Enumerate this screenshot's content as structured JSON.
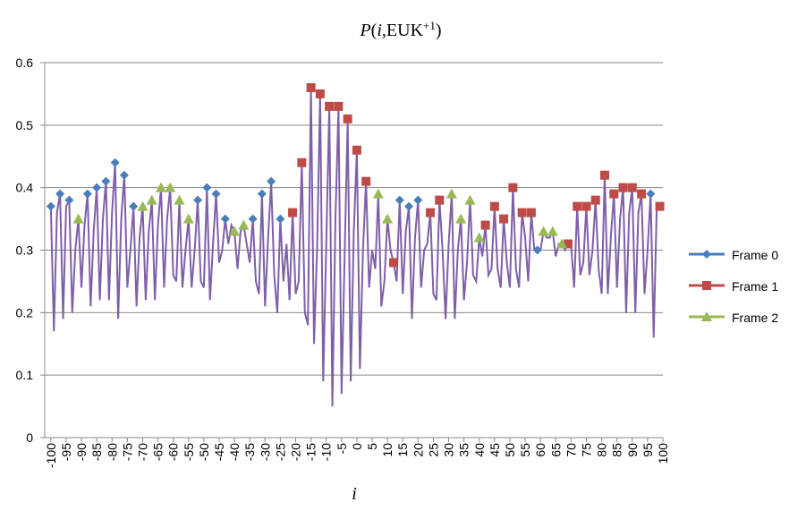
{
  "chart_data": {
    "type": "line",
    "title": [
      "P",
      "(",
      "i",
      ",EUK",
      "+1",
      ")"
    ],
    "x_label": "i",
    "xlim": [
      -102,
      100
    ],
    "xticks": [
      -100,
      -95,
      -90,
      -85,
      -80,
      -75,
      -70,
      -65,
      -60,
      -55,
      -50,
      -45,
      -40,
      -35,
      -30,
      -25,
      -20,
      -15,
      -10,
      -5,
      0,
      5,
      10,
      15,
      20,
      25,
      30,
      35,
      40,
      45,
      50,
      55,
      60,
      65,
      70,
      75,
      80,
      85,
      90,
      95,
      100
    ],
    "ylim": [
      0,
      0.6
    ],
    "yticks": [
      0,
      0.1,
      0.2,
      0.3,
      0.4,
      0.5,
      0.6
    ],
    "grid": true,
    "legend": "right",
    "line": {
      "color": "#7f5fa8",
      "x": [
        -100,
        -99,
        -98,
        -97,
        -96,
        -95,
        -94,
        -93,
        -92,
        -91,
        -90,
        -89,
        -88,
        -87,
        -86,
        -85,
        -84,
        -83,
        -82,
        -81,
        -80,
        -79,
        -78,
        -77,
        -76,
        -75,
        -74,
        -73,
        -72,
        -71,
        -70,
        -69,
        -68,
        -67,
        -66,
        -65,
        -64,
        -63,
        -62,
        -61,
        -60,
        -59,
        -58,
        -57,
        -56,
        -55,
        -54,
        -53,
        -52,
        -51,
        -50,
        -49,
        -48,
        -47,
        -46,
        -45,
        -44,
        -43,
        -42,
        -41,
        -40,
        -39,
        -38,
        -37,
        -36,
        -35,
        -34,
        -33,
        -32,
        -31,
        -30,
        -29,
        -28,
        -27,
        -26,
        -25,
        -24,
        -23,
        -22,
        -21,
        -20,
        -19,
        -18,
        -17,
        -16,
        -15,
        -14,
        -13,
        -12,
        -11,
        -10,
        -9,
        -8,
        -7,
        -6,
        -5,
        -4,
        -3,
        -2,
        -1,
        0,
        1,
        2,
        3,
        4,
        5,
        6,
        7,
        8,
        9,
        10,
        11,
        12,
        13,
        14,
        15,
        16,
        17,
        18,
        19,
        20,
        21,
        22,
        23,
        24,
        25,
        26,
        27,
        28,
        29,
        30,
        31,
        32,
        33,
        34,
        35,
        36,
        37,
        38,
        39,
        40,
        41,
        42,
        43,
        44,
        45,
        46,
        47,
        48,
        49,
        50,
        51,
        52,
        53,
        54,
        55,
        56,
        57,
        58,
        59,
        60,
        61,
        62,
        63,
        64,
        65,
        66,
        67,
        68,
        69,
        70,
        71,
        72,
        73,
        74,
        75,
        76,
        77,
        78,
        79,
        80,
        81,
        82,
        83,
        84,
        85,
        86,
        87,
        88,
        89,
        90,
        91,
        92,
        93,
        94,
        95,
        96,
        97,
        98,
        99,
        100
      ],
      "values": [
        0.37,
        0.17,
        0.36,
        0.39,
        0.19,
        0.37,
        0.38,
        0.2,
        0.3,
        0.35,
        0.24,
        0.34,
        0.39,
        0.21,
        0.33,
        0.4,
        0.22,
        0.35,
        0.41,
        0.22,
        0.36,
        0.44,
        0.19,
        0.35,
        0.42,
        0.24,
        0.3,
        0.37,
        0.21,
        0.32,
        0.37,
        0.22,
        0.33,
        0.38,
        0.22,
        0.34,
        0.4,
        0.24,
        0.35,
        0.4,
        0.26,
        0.25,
        0.38,
        0.24,
        0.3,
        0.35,
        0.24,
        0.3,
        0.38,
        0.25,
        0.24,
        0.4,
        0.22,
        0.31,
        0.39,
        0.28,
        0.3,
        0.35,
        0.31,
        0.34,
        0.33,
        0.27,
        0.33,
        0.34,
        0.31,
        0.28,
        0.35,
        0.25,
        0.23,
        0.39,
        0.21,
        0.32,
        0.41,
        0.26,
        0.2,
        0.35,
        0.25,
        0.31,
        0.22,
        0.36,
        0.23,
        0.25,
        0.44,
        0.2,
        0.18,
        0.56,
        0.15,
        0.3,
        0.55,
        0.09,
        0.31,
        0.53,
        0.05,
        0.35,
        0.53,
        0.07,
        0.29,
        0.51,
        0.09,
        0.33,
        0.46,
        0.11,
        0.3,
        0.41,
        0.24,
        0.3,
        0.27,
        0.39,
        0.21,
        0.25,
        0.35,
        0.3,
        0.28,
        0.25,
        0.38,
        0.23,
        0.33,
        0.37,
        0.19,
        0.32,
        0.38,
        0.24,
        0.3,
        0.31,
        0.36,
        0.23,
        0.22,
        0.38,
        0.3,
        0.19,
        0.31,
        0.39,
        0.19,
        0.3,
        0.35,
        0.22,
        0.28,
        0.38,
        0.26,
        0.25,
        0.32,
        0.29,
        0.34,
        0.26,
        0.27,
        0.37,
        0.27,
        0.24,
        0.35,
        0.28,
        0.24,
        0.4,
        0.27,
        0.24,
        0.36,
        0.32,
        0.25,
        0.36,
        0.3,
        0.3,
        0.3,
        0.33,
        0.32,
        0.32,
        0.33,
        0.29,
        0.31,
        0.31,
        0.3,
        0.31,
        0.31,
        0.24,
        0.37,
        0.26,
        0.28,
        0.37,
        0.26,
        0.3,
        0.38,
        0.27,
        0.23,
        0.42,
        0.23,
        0.32,
        0.39,
        0.24,
        0.35,
        0.4,
        0.2,
        0.36,
        0.4,
        0.2,
        0.36,
        0.39,
        0.23,
        0.3,
        0.39,
        0.16,
        0.37,
        0.37,
        0.37
      ]
    },
    "series": [
      {
        "name": "Frame 0",
        "color": "#4a7ebb",
        "marker": "diamond",
        "x": [
          -100,
          -97,
          -94,
          -88,
          -85,
          -82,
          -79,
          -76,
          -73,
          -52,
          -49,
          -46,
          -43,
          -34,
          -31,
          -28,
          -25,
          14,
          17,
          20,
          59,
          96
        ],
        "values": [
          0.37,
          0.39,
          0.38,
          0.39,
          0.4,
          0.41,
          0.44,
          0.42,
          0.37,
          0.38,
          0.4,
          0.39,
          0.35,
          0.35,
          0.39,
          0.41,
          0.35,
          0.38,
          0.37,
          0.38,
          0.3,
          0.39
        ]
      },
      {
        "name": "Frame 1",
        "color": "#be4b48",
        "marker": "square",
        "x": [
          -21,
          -18,
          -15,
          -12,
          -9,
          -6,
          -3,
          0,
          3,
          12,
          24,
          27,
          42,
          45,
          48,
          51,
          54,
          57,
          69,
          72,
          75,
          78,
          81,
          84,
          87,
          90,
          93,
          99
        ],
        "values": [
          0.36,
          0.44,
          0.56,
          0.55,
          0.53,
          0.53,
          0.51,
          0.46,
          0.41,
          0.28,
          0.36,
          0.38,
          0.34,
          0.37,
          0.35,
          0.4,
          0.36,
          0.36,
          0.31,
          0.37,
          0.37,
          0.38,
          0.42,
          0.39,
          0.4,
          0.4,
          0.39,
          0.37
        ]
      },
      {
        "name": "Frame 2",
        "color": "#98b954",
        "marker": "triangle",
        "x": [
          -91,
          -70,
          -67,
          -64,
          -61,
          -58,
          -55,
          -40,
          -37,
          7,
          10,
          31,
          34,
          37,
          40,
          61,
          64,
          67
        ],
        "values": [
          0.35,
          0.37,
          0.38,
          0.4,
          0.4,
          0.38,
          0.35,
          0.33,
          0.34,
          0.39,
          0.35,
          0.39,
          0.35,
          0.38,
          0.32,
          0.33,
          0.33,
          0.31
        ]
      }
    ]
  }
}
